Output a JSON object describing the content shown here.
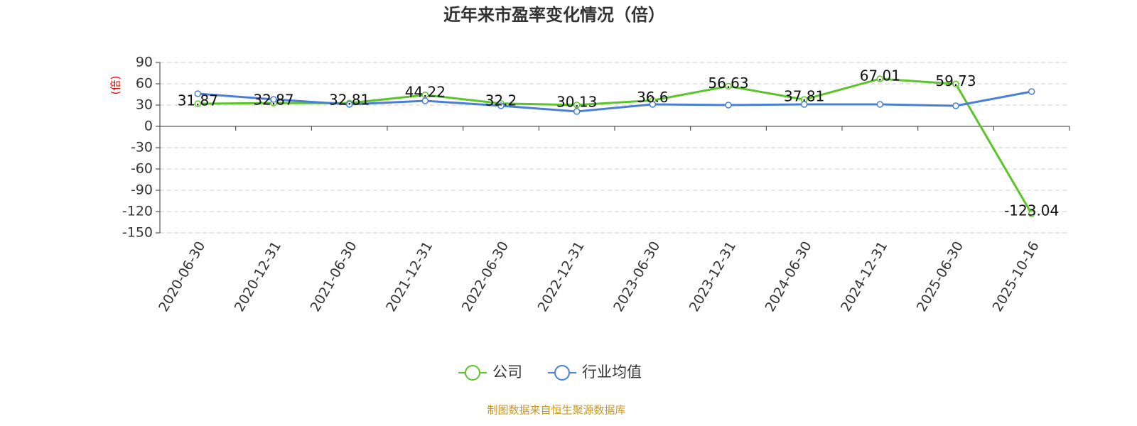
{
  "chart_data": {
    "type": "line",
    "title": "近年来市盈率变化情况（倍）",
    "y_label": "(倍)",
    "source": "制图数据来自恒生聚源数据库",
    "categories": [
      "2020-06-30",
      "2020-12-31",
      "2021-06-30",
      "2021-12-31",
      "2022-06-30",
      "2022-12-31",
      "2023-06-30",
      "2023-12-31",
      "2024-06-30",
      "2024-12-31",
      "2025-06-30",
      "2025-10-16"
    ],
    "series": [
      {
        "name": "公司",
        "color": "#5bc42b",
        "values": [
          31.87,
          32.87,
          32.81,
          44.22,
          32.2,
          30.13,
          36.6,
          56.63,
          37.81,
          67.01,
          59.73,
          -123.04
        ],
        "show_labels": true
      },
      {
        "name": "行业均值",
        "color": "#4a7fd8",
        "values": [
          46,
          38,
          31,
          36,
          29,
          21,
          31,
          30,
          31,
          31,
          29,
          49
        ],
        "show_labels": false
      }
    ],
    "ylim": [
      -150,
      90
    ],
    "yticks": [
      -150,
      -120,
      -90,
      -60,
      -30,
      0,
      30,
      60,
      90
    ],
    "grid": true
  }
}
